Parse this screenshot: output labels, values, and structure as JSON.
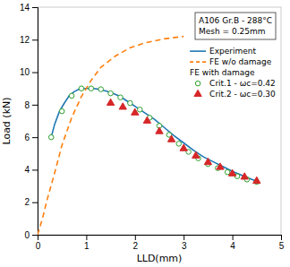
{
  "chart_data": {
    "type": "line",
    "xlabel": "LLD(mm)",
    "ylabel": "Load (kN)",
    "xlim": [
      0,
      5
    ],
    "ylim": [
      0,
      14
    ],
    "xticks": [
      0,
      1,
      2,
      3,
      4,
      5
    ],
    "yticks": [
      0,
      2,
      4,
      6,
      8,
      10,
      12,
      14
    ],
    "grid": false,
    "legend": "upper right",
    "annotations": [
      "A106 Gr.B - 288°C",
      "Mesh = 0.25mm"
    ],
    "series": [
      {
        "name": "Experiment",
        "type": "line",
        "line_style": "solid",
        "x": [
          0.28,
          0.35,
          0.45,
          0.55,
          0.65,
          0.75,
          0.85,
          0.95,
          1.05,
          1.15,
          1.25,
          1.4,
          1.55,
          1.7,
          1.85,
          2.0,
          2.2,
          2.4,
          2.6,
          2.8,
          3.0,
          3.2,
          3.4,
          3.6,
          3.8,
          4.0,
          4.2,
          4.4,
          4.5
        ],
        "values": [
          6.0,
          6.8,
          7.6,
          8.1,
          8.55,
          8.8,
          8.95,
          9.0,
          9.0,
          9.0,
          8.95,
          8.85,
          8.7,
          8.5,
          8.2,
          7.9,
          7.5,
          7.1,
          6.6,
          6.1,
          5.65,
          5.2,
          4.8,
          4.5,
          4.2,
          3.9,
          3.65,
          3.4,
          3.3
        ]
      },
      {
        "name": "FE w/o damage",
        "type": "line",
        "line_style": "dashed",
        "x": [
          0.0,
          0.1,
          0.2,
          0.35,
          0.5,
          0.7,
          0.9,
          1.1,
          1.3,
          1.6,
          1.9,
          2.2,
          2.6,
          3.0
        ],
        "values": [
          0.0,
          1.0,
          2.2,
          3.8,
          5.5,
          7.2,
          8.5,
          9.5,
          10.3,
          11.0,
          11.5,
          11.8,
          12.05,
          12.2
        ]
      },
      {
        "name": "Crit.1 - ωc=0.42",
        "group": "FE with damage",
        "type": "scatter",
        "marker": "open-circle",
        "x": [
          0.28,
          0.5,
          0.7,
          0.9,
          1.1,
          1.3,
          1.5,
          1.7,
          1.9,
          2.1,
          2.3,
          2.5,
          2.7,
          2.9,
          3.1,
          3.3,
          3.5,
          3.7,
          3.9,
          4.1,
          4.3,
          4.5
        ],
        "values": [
          6.0,
          7.6,
          8.55,
          9.0,
          9.0,
          8.95,
          8.7,
          8.45,
          8.1,
          7.7,
          7.2,
          6.7,
          6.15,
          5.6,
          5.1,
          4.7,
          4.35,
          4.1,
          3.85,
          3.6,
          3.4,
          3.25
        ]
      },
      {
        "name": "Crit.2 - ωc=0.30",
        "group": "FE with damage",
        "type": "scatter",
        "marker": "triangle",
        "x": [
          1.5,
          1.75,
          2.0,
          2.25,
          2.5,
          2.75,
          3.0,
          3.25,
          3.5,
          3.75,
          4.0,
          4.25,
          4.5
        ],
        "values": [
          8.1,
          7.85,
          7.5,
          7.0,
          6.35,
          5.85,
          5.3,
          4.85,
          4.45,
          4.15,
          3.75,
          3.55,
          3.3
        ]
      }
    ]
  }
}
